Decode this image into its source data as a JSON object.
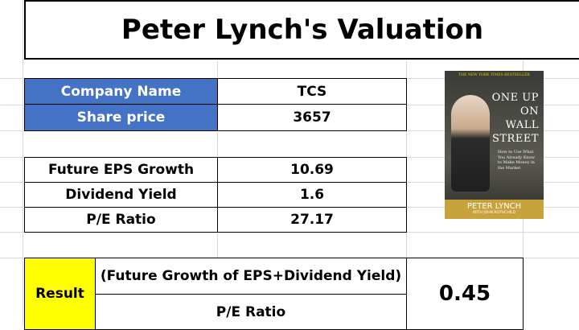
{
  "title": "Peter Lynch's Valuation",
  "company": {
    "rows": [
      [
        "Company Name",
        "TCS"
      ],
      [
        "Share price",
        3657
      ]
    ]
  },
  "metrics": {
    "rows": [
      [
        "Future EPS Growth",
        10.69
      ],
      [
        "Dividend Yield",
        1.6
      ],
      [
        "P/E Ratio",
        27.17
      ]
    ]
  },
  "result": {
    "label": "Result",
    "numerator": "(Future Growth of EPS+Dividend Yield)",
    "denominator": "P/E Ratio",
    "value": 0.45
  },
  "book": {
    "banner": "THE NEW YORK TIMES BESTSELLER",
    "title_lines": [
      "ONE UP",
      "ON",
      "WALL",
      "STREET"
    ],
    "subtitle": "How to Use What You Already Know to Make Money in the Market",
    "author": "PETER LYNCH",
    "coauthor": "WITH JOHN ROTHCHILD"
  }
}
